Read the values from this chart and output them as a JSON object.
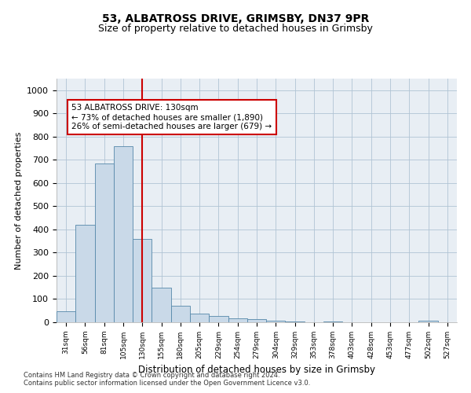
{
  "title1": "53, ALBATROSS DRIVE, GRIMSBY, DN37 9PR",
  "title2": "Size of property relative to detached houses in Grimsby",
  "xlabel": "Distribution of detached houses by size in Grimsby",
  "ylabel": "Number of detached properties",
  "categories": [
    "31sqm",
    "56sqm",
    "81sqm",
    "105sqm",
    "130sqm",
    "155sqm",
    "180sqm",
    "205sqm",
    "229sqm",
    "254sqm",
    "279sqm",
    "304sqm",
    "329sqm",
    "353sqm",
    "378sqm",
    "403sqm",
    "428sqm",
    "453sqm",
    "477sqm",
    "502sqm",
    "527sqm"
  ],
  "values": [
    48,
    420,
    685,
    760,
    360,
    150,
    70,
    38,
    27,
    18,
    13,
    8,
    4,
    0,
    5,
    0,
    0,
    0,
    0,
    8,
    0
  ],
  "bar_color": "#c9d9e8",
  "bar_edge_color": "#5588aa",
  "ref_line_idx": 4,
  "ref_line_color": "#cc0000",
  "annotation_text": "53 ALBATROSS DRIVE: 130sqm\n← 73% of detached houses are smaller (1,890)\n26% of semi-detached houses are larger (679) →",
  "annotation_box_color": "#ffffff",
  "annotation_box_edge": "#cc0000",
  "ylim": [
    0,
    1050
  ],
  "yticks": [
    0,
    100,
    200,
    300,
    400,
    500,
    600,
    700,
    800,
    900,
    1000
  ],
  "footnote1": "Contains HM Land Registry data © Crown copyright and database right 2024.",
  "footnote2": "Contains public sector information licensed under the Open Government Licence v3.0.",
  "background_color": "#e8eef4",
  "title1_fontsize": 10,
  "title2_fontsize": 9
}
